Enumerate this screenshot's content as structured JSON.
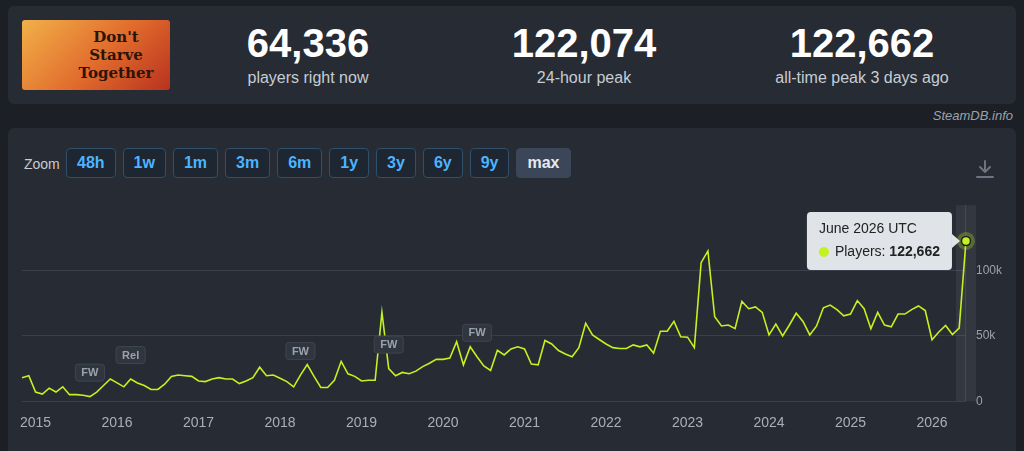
{
  "header": {
    "logo_text": "Don't Starve Together",
    "stats": [
      {
        "value": "64,336",
        "label": "players right now"
      },
      {
        "value": "122,074",
        "label": "24-hour peak"
      },
      {
        "value": "122,662",
        "label": "all-time peak 3 days ago"
      }
    ]
  },
  "watermark": "SteamDB.info",
  "zoom": {
    "label": "Zoom",
    "buttons": [
      "48h",
      "1w",
      "1m",
      "3m",
      "6m",
      "1y",
      "3y",
      "6y",
      "9y",
      "max"
    ],
    "active": "max"
  },
  "chart_data": {
    "type": "line",
    "color": "#c2f21f",
    "grid": true,
    "categories": [
      null,
      null,
      "2015",
      null,
      null,
      null,
      null,
      null,
      null,
      null,
      null,
      null,
      null,
      null,
      "2016",
      null,
      null,
      null,
      null,
      null,
      null,
      null,
      null,
      null,
      null,
      null,
      "2017",
      null,
      null,
      null,
      null,
      null,
      null,
      null,
      null,
      null,
      null,
      null,
      "2018",
      null,
      null,
      null,
      null,
      null,
      null,
      null,
      null,
      null,
      null,
      null,
      "2019",
      null,
      null,
      null,
      null,
      null,
      null,
      null,
      null,
      null,
      null,
      null,
      "2020",
      null,
      null,
      null,
      null,
      null,
      null,
      null,
      null,
      null,
      null,
      null,
      "2021",
      null,
      null,
      null,
      null,
      null,
      null,
      null,
      null,
      null,
      null,
      null,
      "2022",
      null,
      null,
      null,
      null,
      null,
      null,
      null,
      null,
      null,
      null,
      null,
      "2023",
      null,
      null,
      null,
      null,
      null,
      null,
      null,
      null,
      null,
      null,
      null,
      "2024",
      null,
      null,
      null,
      null,
      null,
      null,
      null,
      null,
      null,
      null,
      null,
      "2025",
      null,
      null,
      null,
      null,
      null,
      null,
      null,
      null,
      null,
      null,
      null,
      "2026",
      null,
      null,
      null,
      null,
      null
    ],
    "values": [
      18000,
      19500,
      7000,
      5500,
      10000,
      7000,
      11000,
      5000,
      5000,
      4500,
      3500,
      7000,
      12000,
      17000,
      14000,
      11000,
      17000,
      14000,
      12000,
      9000,
      9000,
      13000,
      19000,
      20000,
      19500,
      19000,
      15500,
      15000,
      17000,
      18000,
      17000,
      17000,
      13500,
      15500,
      18000,
      26000,
      19500,
      20000,
      17500,
      15000,
      11000,
      20000,
      28000,
      19000,
      10500,
      10500,
      16000,
      30500,
      21000,
      19000,
      15500,
      16000,
      16000,
      68000,
      25000,
      19500,
      22000,
      21000,
      23000,
      26500,
      29000,
      32000,
      32000,
      33000,
      45500,
      27800,
      41600,
      34000,
      27000,
      23500,
      39000,
      35400,
      40000,
      41600,
      40000,
      28500,
      27800,
      46500,
      43800,
      38800,
      36100,
      34000,
      41000,
      59700,
      50700,
      47200,
      43800,
      41000,
      40300,
      40300,
      43100,
      41600,
      43100,
      36800,
      53500,
      53500,
      61100,
      49300,
      49000,
      41000,
      106000,
      115000,
      64600,
      57600,
      58300,
      55500,
      76400,
      70800,
      72200,
      68000,
      50700,
      59000,
      50000,
      58300,
      67300,
      61100,
      50700,
      57600,
      71500,
      73600,
      70100,
      65300,
      66700,
      77000,
      70800,
      55500,
      68000,
      58300,
      56900,
      66700,
      66700,
      70100,
      72900,
      69400,
      47000,
      53000,
      58000,
      51000,
      56000,
      122662
    ],
    "ylim": [
      0,
      150000
    ],
    "yticks": [
      0,
      {
        "value": 50000,
        "label": "50k"
      },
      {
        "value": 100000,
        "label": "100k"
      }
    ],
    "annotations": [
      {
        "text": "FW",
        "index": 10
      },
      {
        "text": "Rel",
        "index": 16
      },
      {
        "text": "FW",
        "index": 41
      },
      {
        "text": "FW",
        "index": 54
      },
      {
        "text": "FW",
        "index": 67
      }
    ],
    "tooltip": {
      "index": 139,
      "title": "June 2026 UTC",
      "label": "Players:",
      "value_label": "122,662"
    }
  }
}
